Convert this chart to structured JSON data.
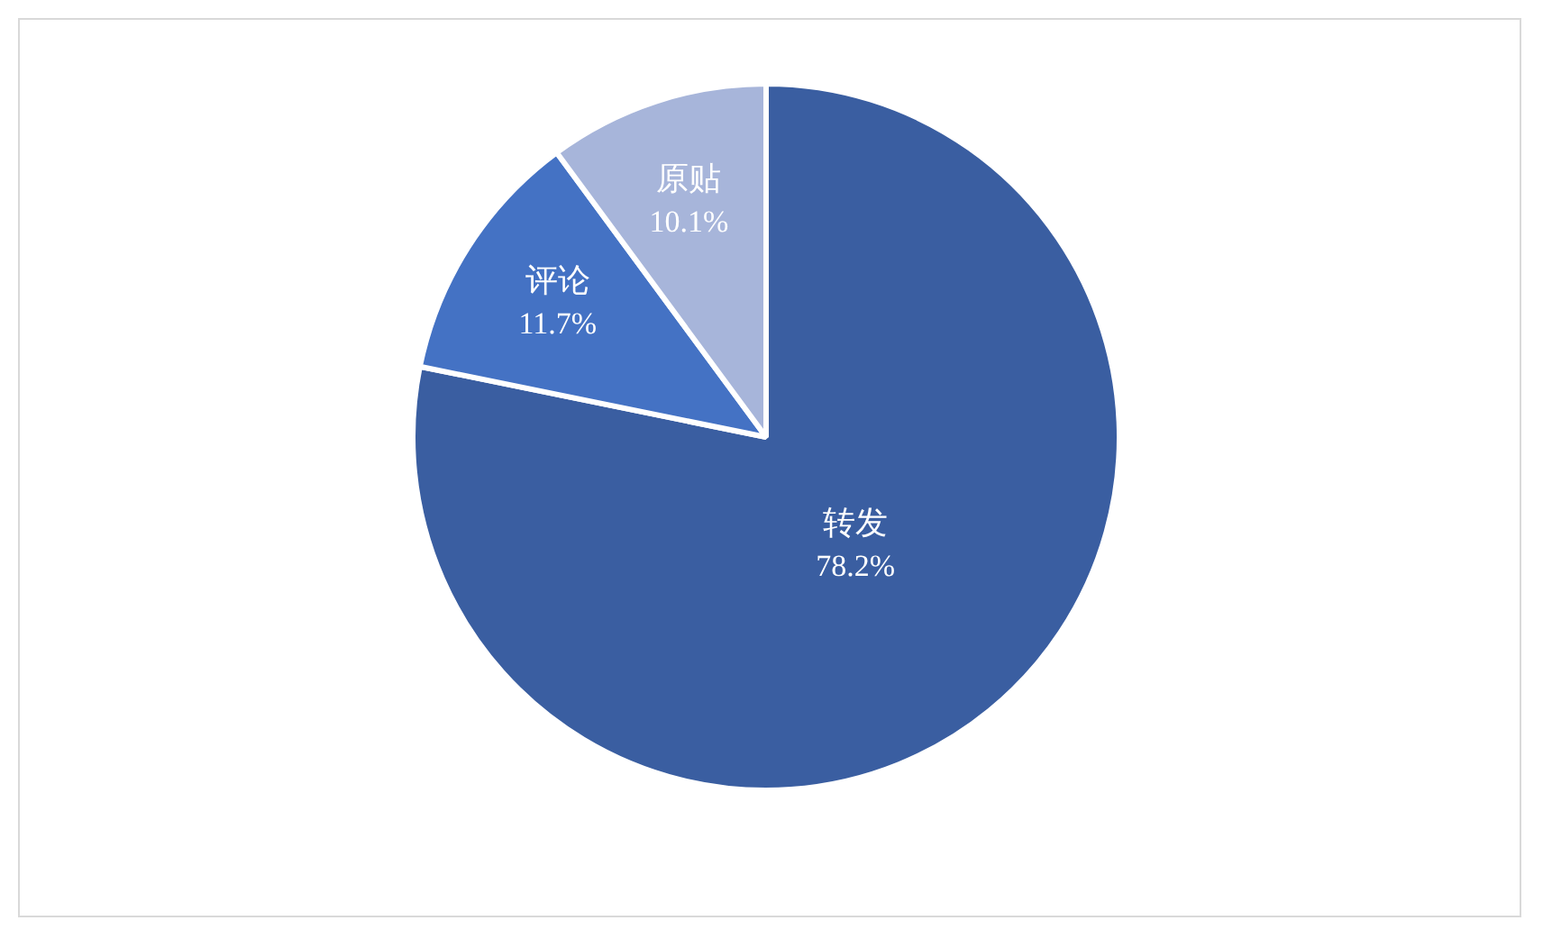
{
  "chart_data": {
    "type": "pie",
    "categories": [
      "转发",
      "评论",
      "原贴"
    ],
    "values": [
      78.2,
      11.7,
      10.1
    ],
    "colors": [
      "#3a5ea1",
      "#4472c4",
      "#a7b5da"
    ],
    "value_labels": [
      "78.2%",
      "11.7%",
      "10.1%"
    ],
    "legend": false
  }
}
